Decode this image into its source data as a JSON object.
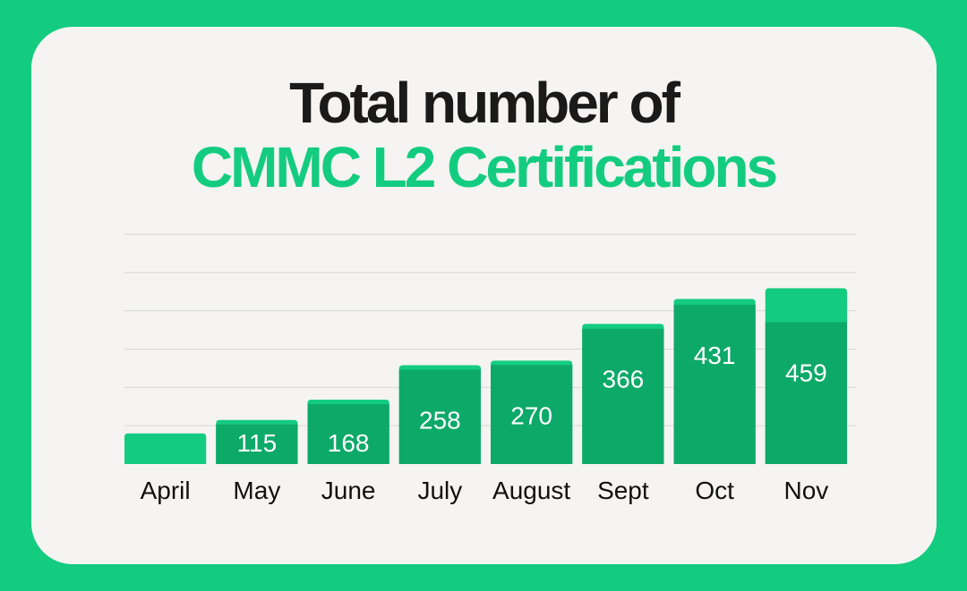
{
  "title_line1": "Total number of",
  "title_line2": "CMMC L2 Certifications",
  "colors": {
    "background": "#14cc80",
    "card": "#f5f4f2",
    "bar_body": "#0da968",
    "bar_cap": "#14cc80",
    "bar_label": "#ffffff",
    "gridline": "#d6d6d6",
    "title_dark": "#1a1a1a",
    "title_accent": "#14cc80"
  },
  "chart_data": {
    "type": "bar",
    "categories": [
      "April",
      "May",
      "June",
      "July",
      "August",
      "Sept",
      "Oct",
      "Nov"
    ],
    "values": [
      80,
      115,
      168,
      258,
      270,
      366,
      431,
      459
    ],
    "data_labels": [
      "",
      "115",
      "168",
      "258",
      "270",
      "366",
      "431",
      "459"
    ],
    "title": "Total number of CMMC L2 Certifications",
    "xlabel": "",
    "ylabel": "",
    "ylim": [
      0,
      600
    ],
    "grid": true,
    "gridlines_y": [
      0,
      100,
      200,
      300,
      400,
      500,
      600
    ]
  }
}
